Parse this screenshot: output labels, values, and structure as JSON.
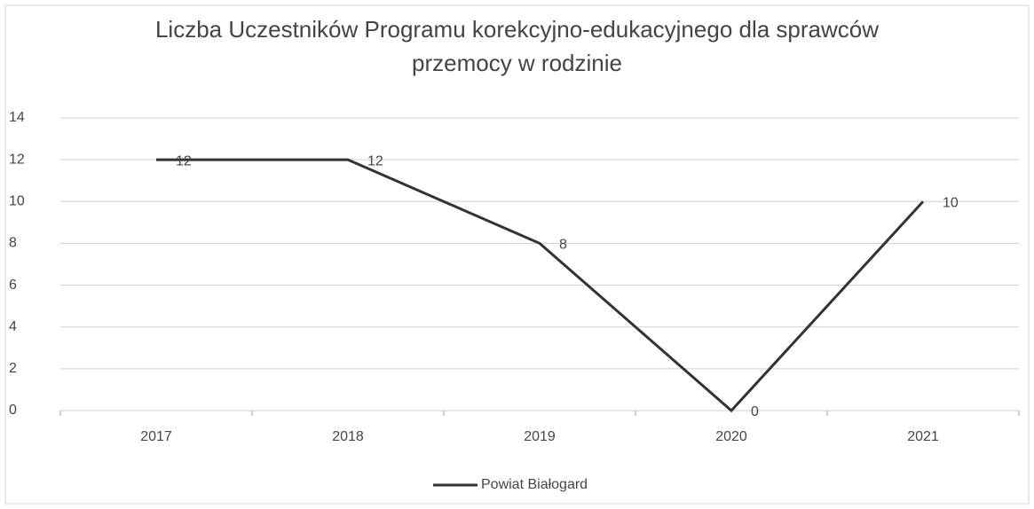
{
  "chart_data": {
    "type": "line",
    "title": "Liczba Uczestników Programu korekcyjno-edukacyjnego dla sprawców przemocy w rodzinie",
    "categories": [
      "2017",
      "2018",
      "2019",
      "2020",
      "2021"
    ],
    "series": [
      {
        "name": "Powiat Białogard",
        "color": "#333333",
        "values": [
          12,
          12,
          8,
          0,
          10
        ]
      }
    ],
    "ylim": [
      0,
      14
    ],
    "yticks": [
      0,
      2,
      4,
      6,
      8,
      10,
      12,
      14
    ],
    "grid": true,
    "legend": "bottom"
  }
}
